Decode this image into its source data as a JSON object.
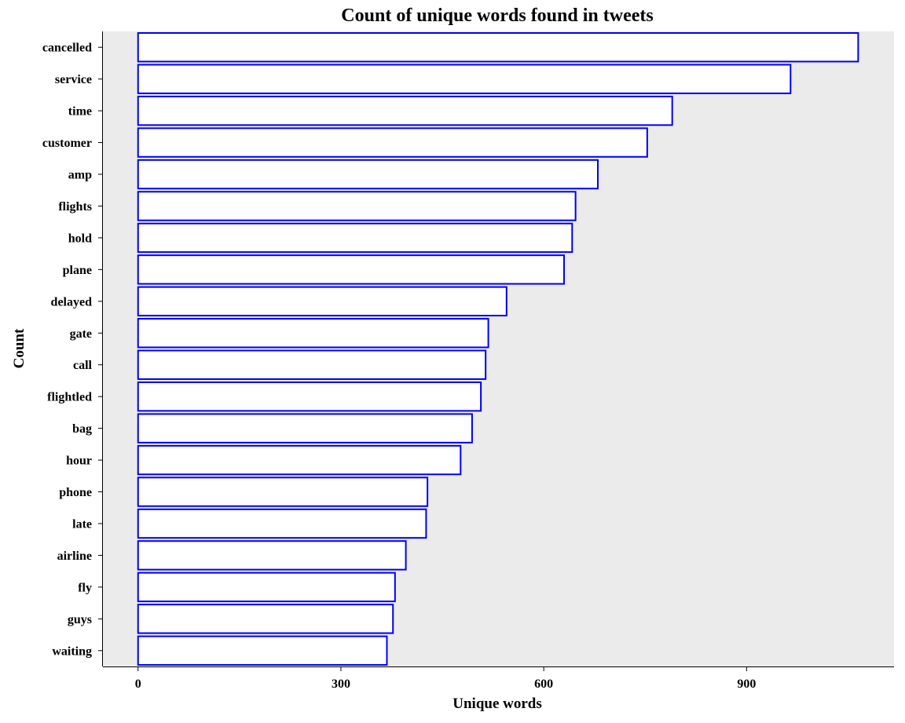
{
  "chart_data": {
    "type": "bar",
    "orientation": "horizontal",
    "title": "Count of unique words found in tweets",
    "xlabel": "Unique words",
    "ylabel": "Count",
    "categories": [
      "cancelled",
      "service",
      "time",
      "customer",
      "amp",
      "flights",
      "hold",
      "plane",
      "delayed",
      "gate",
      "call",
      "flightled",
      "bag",
      "hour",
      "phone",
      "late",
      "airline",
      "fly",
      "guys",
      "waiting"
    ],
    "values": [
      1065,
      965,
      790,
      753,
      680,
      647,
      642,
      630,
      545,
      518,
      514,
      507,
      494,
      477,
      428,
      426,
      396,
      380,
      377,
      368
    ],
    "xlim": [
      -52,
      1118
    ],
    "xticks": [
      0,
      300,
      600,
      900
    ],
    "grid": false,
    "colors": {
      "panel": "#ebebeb",
      "bar_fill": "#ffffff",
      "bar_stroke": "#0000ee"
    }
  }
}
